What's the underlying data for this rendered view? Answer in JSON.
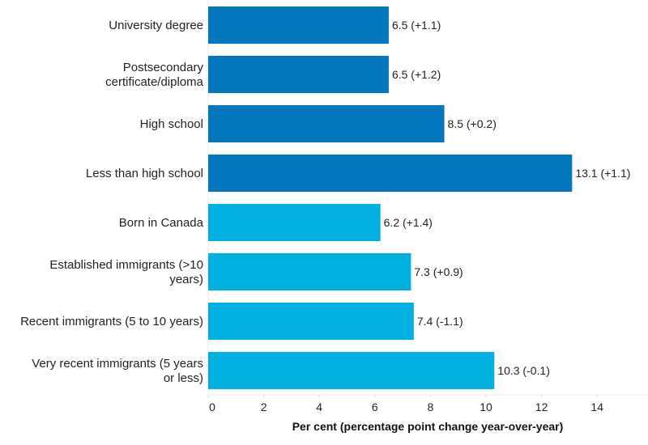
{
  "chart_data": {
    "type": "bar",
    "orientation": "horizontal",
    "categories": [
      [
        "University degree"
      ],
      [
        "Postsecondary",
        "certificate/diploma"
      ],
      [
        "High school"
      ],
      [
        "Less than high school"
      ],
      [
        "Born in Canada"
      ],
      [
        "Established immigrants (>10",
        "years)"
      ],
      [
        "Recent immigrants (5 to 10 years)"
      ],
      [
        "Very recent immigrants (5 years",
        "or less)"
      ]
    ],
    "values": [
      6.5,
      6.5,
      8.5,
      13.1,
      6.2,
      7.3,
      7.4,
      10.3
    ],
    "changes": [
      "+1.1",
      "+1.2",
      "+0.2",
      "+1.1",
      "+1.4",
      "+0.9",
      "-1.1",
      "-0.1"
    ],
    "data_labels": [
      "6.5 (+1.1)",
      "6.5 (+1.2)",
      "8.5 (+0.2)",
      "13.1 (+1.1)",
      "6.2 (+1.4)",
      "7.3 (+0.9)",
      "7.4 (-1.1)",
      "10.3 (-0.1)"
    ],
    "bar_colors": [
      "#0577bf",
      "#0577bf",
      "#0577bf",
      "#0577bf",
      "#00b0e0",
      "#00b0e0",
      "#00b0e0",
      "#00b0e0"
    ],
    "xlabel": "Per cent (percentage point change year-over-year)",
    "ylabel": "",
    "xlim": [
      0,
      16
    ],
    "xticks": [
      "0",
      "2",
      "4",
      "6",
      "8",
      "10",
      "12",
      "14"
    ],
    "grid": false
  }
}
